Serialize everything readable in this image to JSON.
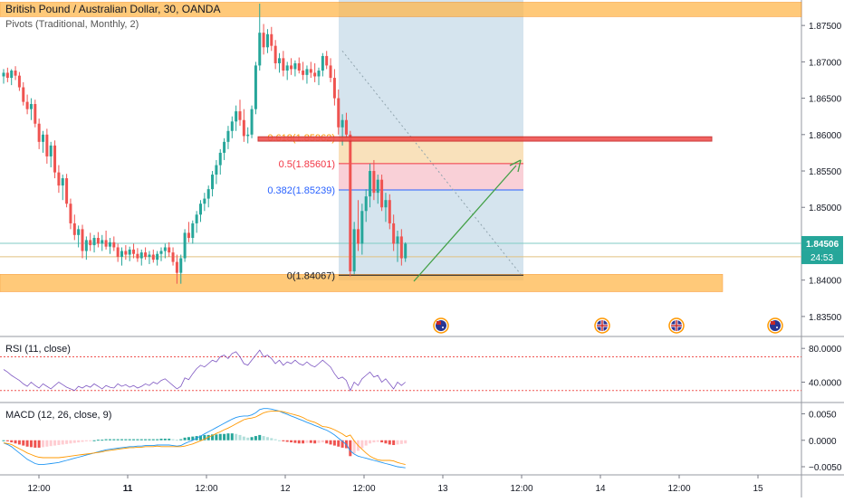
{
  "header": {
    "symbol_title": "British Pound / Australian Dollar, 30, OANDA",
    "pivots_label": "Pivots (Traditional, Monthly, 2)"
  },
  "colors": {
    "bull": "#26a69a",
    "bear": "#ef5350",
    "orange_zone": "#ffb74d",
    "fib_0618": "#ff9800",
    "fib_05": "#f23645",
    "fib_0382": "#2962ff",
    "fib_0": "#131722",
    "price_tag": "#26a69a",
    "rsi_line": "#7e57c2",
    "rsi_bound": "#ef5350",
    "macd_line": "#2196f3",
    "signal_line": "#ff9800",
    "arrow": "#43a047",
    "shade": "#b3cde0"
  },
  "chart_data": [
    {
      "type": "candlestick",
      "title": "British Pound / Australian Dollar, 30, OANDA",
      "y_ticks": [
        1.835,
        1.84,
        1.845,
        1.85,
        1.855,
        1.86,
        1.865,
        1.87,
        1.875
      ],
      "y_tick_labels": [
        "1.83500",
        "1.84000",
        "1.84500",
        "1.85000",
        "1.85500",
        "1.86000",
        "1.86500",
        "1.87000",
        "1.87500"
      ],
      "ylim": [
        1.8325,
        1.8785
      ],
      "x_ticks": [
        "12:00",
        "11",
        "12:00",
        "12",
        "12:00",
        "13",
        "12:00",
        "14",
        "12:00",
        "15"
      ],
      "bold_x_ticks": [
        "11"
      ],
      "current_price": "1.84506",
      "countdown": "24:53",
      "fib_levels": [
        {
          "label": "0.618(1.85962)",
          "value": 1.85962
        },
        {
          "label": "0.5(1.85601)",
          "value": 1.85601
        },
        {
          "label": "0.382(1.85239)",
          "value": 1.85239
        },
        {
          "label": "0(1.84067)",
          "value": 1.84067
        }
      ],
      "zones": [
        {
          "from": 1.8762,
          "to": 1.8782
        },
        {
          "from": 1.8384,
          "to": 1.8408
        },
        {
          "from": 1.8591,
          "to": 1.8597
        }
      ],
      "candles": [
        [
          1.868,
          1.869,
          1.867,
          1.8685
        ],
        [
          1.8685,
          1.8692,
          1.8672,
          1.8678
        ],
        [
          1.8678,
          1.869,
          1.8668,
          1.8688
        ],
        [
          1.8688,
          1.8694,
          1.8675,
          1.8681
        ],
        [
          1.8681,
          1.8686,
          1.866,
          1.8665
        ],
        [
          1.8665,
          1.8672,
          1.864,
          1.8645
        ],
        [
          1.8645,
          1.8655,
          1.8628,
          1.8635
        ],
        [
          1.8635,
          1.865,
          1.862,
          1.8642
        ],
        [
          1.8642,
          1.8648,
          1.861,
          1.8615
        ],
        [
          1.8615,
          1.8622,
          1.858,
          1.859
        ],
        [
          1.859,
          1.8605,
          1.8575,
          1.86
        ],
        [
          1.86,
          1.8608,
          1.856,
          1.857
        ],
        [
          1.857,
          1.859,
          1.8555,
          1.8585
        ],
        [
          1.8585,
          1.8592,
          1.854,
          1.8548
        ],
        [
          1.8548,
          1.8558,
          1.852,
          1.853
        ],
        [
          1.853,
          1.8545,
          1.851,
          1.854
        ],
        [
          1.854,
          1.8546,
          1.85,
          1.8505
        ],
        [
          1.8505,
          1.8512,
          1.847,
          1.8478
        ],
        [
          1.8478,
          1.849,
          1.8455,
          1.8462
        ],
        [
          1.8462,
          1.8475,
          1.8445,
          1.847
        ],
        [
          1.847,
          1.8476,
          1.843,
          1.844
        ],
        [
          1.844,
          1.846,
          1.8428,
          1.8455
        ],
        [
          1.8455,
          1.8465,
          1.844,
          1.8448
        ],
        [
          1.8448,
          1.8462,
          1.8438,
          1.8458
        ],
        [
          1.8458,
          1.8466,
          1.8445,
          1.845
        ],
        [
          1.845,
          1.8462,
          1.844,
          1.8455
        ],
        [
          1.8455,
          1.8468,
          1.8442,
          1.8446
        ],
        [
          1.8446,
          1.8458,
          1.8436,
          1.8452
        ],
        [
          1.8452,
          1.846,
          1.844,
          1.8445
        ],
        [
          1.8445,
          1.845,
          1.8425,
          1.8432
        ],
        [
          1.8432,
          1.8445,
          1.842,
          1.844
        ],
        [
          1.844,
          1.8448,
          1.8428,
          1.8435
        ],
        [
          1.8435,
          1.8446,
          1.8426,
          1.8442
        ],
        [
          1.8442,
          1.845,
          1.843,
          1.8436
        ],
        [
          1.8436,
          1.8444,
          1.8425,
          1.843
        ],
        [
          1.843,
          1.8442,
          1.842,
          1.8438
        ],
        [
          1.8438,
          1.8445,
          1.8428,
          1.8432
        ],
        [
          1.8432,
          1.844,
          1.8422,
          1.8435
        ],
        [
          1.8435,
          1.8442,
          1.8424,
          1.8428
        ],
        [
          1.8428,
          1.844,
          1.842,
          1.8436
        ],
        [
          1.8436,
          1.8445,
          1.8426,
          1.844
        ],
        [
          1.844,
          1.845,
          1.843,
          1.8445
        ],
        [
          1.8445,
          1.8452,
          1.8432,
          1.8438
        ],
        [
          1.8438,
          1.8445,
          1.842,
          1.8425
        ],
        [
          1.8425,
          1.8435,
          1.8395,
          1.841
        ],
        [
          1.841,
          1.8435,
          1.8395,
          1.843
        ],
        [
          1.843,
          1.847,
          1.8425,
          1.8465
        ],
        [
          1.8465,
          1.848,
          1.8452,
          1.8458
        ],
        [
          1.8458,
          1.8482,
          1.845,
          1.8478
        ],
        [
          1.8478,
          1.8495,
          1.8465,
          1.849
        ],
        [
          1.849,
          1.851,
          1.848,
          1.8505
        ],
        [
          1.8505,
          1.852,
          1.8495,
          1.8512
        ],
        [
          1.8512,
          1.853,
          1.85,
          1.8525
        ],
        [
          1.8525,
          1.855,
          1.8515,
          1.8545
        ],
        [
          1.8545,
          1.8565,
          1.8532,
          1.8558
        ],
        [
          1.8558,
          1.858,
          1.8545,
          1.8575
        ],
        [
          1.8575,
          1.8595,
          1.8565,
          1.859
        ],
        [
          1.859,
          1.8612,
          1.858,
          1.8605
        ],
        [
          1.8605,
          1.8625,
          1.8595,
          1.8618
        ],
        [
          1.8618,
          1.864,
          1.8605,
          1.8632
        ],
        [
          1.8632,
          1.8648,
          1.8612,
          1.862
        ],
        [
          1.862,
          1.8635,
          1.859,
          1.8598
        ],
        [
          1.8598,
          1.861,
          1.8588,
          1.86
        ],
        [
          1.86,
          1.864,
          1.8595,
          1.8635
        ],
        [
          1.8635,
          1.87,
          1.8628,
          1.8695
        ],
        [
          1.8695,
          1.878,
          1.8688,
          1.874
        ],
        [
          1.874,
          1.8752,
          1.871,
          1.872
        ],
        [
          1.872,
          1.8745,
          1.8712,
          1.8738
        ],
        [
          1.8738,
          1.8748,
          1.8715,
          1.8722
        ],
        [
          1.8722,
          1.873,
          1.869,
          1.8698
        ],
        [
          1.8698,
          1.8712,
          1.8685,
          1.8705
        ],
        [
          1.8705,
          1.8715,
          1.868,
          1.8688
        ],
        [
          1.8688,
          1.87,
          1.8675,
          1.8695
        ],
        [
          1.8695,
          1.8705,
          1.8682,
          1.869
        ],
        [
          1.869,
          1.8702,
          1.868,
          1.8698
        ],
        [
          1.8698,
          1.8706,
          1.8684,
          1.8688
        ],
        [
          1.8688,
          1.87,
          1.8675,
          1.8682
        ],
        [
          1.8682,
          1.8695,
          1.867,
          1.869
        ],
        [
          1.869,
          1.87,
          1.8678,
          1.8685
        ],
        [
          1.8685,
          1.8698,
          1.8672,
          1.868
        ],
        [
          1.868,
          1.8692,
          1.8668,
          1.8688
        ],
        [
          1.8688,
          1.8712,
          1.868,
          1.8708
        ],
        [
          1.8708,
          1.8715,
          1.869,
          1.8695
        ],
        [
          1.8695,
          1.8705,
          1.8672,
          1.8678
        ],
        [
          1.8678,
          1.869,
          1.864,
          1.865
        ],
        [
          1.865,
          1.8662,
          1.86,
          1.861
        ],
        [
          1.861,
          1.8628,
          1.8585,
          1.862
        ],
        [
          1.862,
          1.863,
          1.8595,
          1.86
        ],
        [
          1.86,
          1.8605,
          1.8405,
          1.8412
        ],
        [
          1.8412,
          1.848,
          1.8408,
          1.847
        ],
        [
          1.847,
          1.851,
          1.844,
          1.845
        ],
        [
          1.845,
          1.8505,
          1.8435,
          1.8495
        ],
        [
          1.8495,
          1.8525,
          1.848,
          1.8515
        ],
        [
          1.8515,
          1.856,
          1.85,
          1.855
        ],
        [
          1.855,
          1.8565,
          1.851,
          1.852
        ],
        [
          1.852,
          1.8545,
          1.8505,
          1.8538
        ],
        [
          1.8538,
          1.8545,
          1.8495,
          1.85
        ],
        [
          1.85,
          1.852,
          1.848,
          1.851
        ],
        [
          1.851,
          1.8518,
          1.847,
          1.8478
        ],
        [
          1.8478,
          1.849,
          1.844,
          1.845
        ],
        [
          1.845,
          1.8468,
          1.8425,
          1.846
        ],
        [
          1.846,
          1.847,
          1.842,
          1.843
        ],
        [
          1.843,
          1.8452,
          1.8425,
          1.845
        ]
      ]
    },
    {
      "type": "line",
      "title": "RSI (11, close)",
      "y_ticks": [
        40,
        80
      ],
      "y_tick_labels": [
        "40.0000",
        "80.0000"
      ],
      "bounds": [
        30,
        70
      ],
      "ylim": [
        18,
        92
      ],
      "values": [
        55,
        52,
        48,
        45,
        42,
        38,
        35,
        40,
        36,
        33,
        38,
        35,
        32,
        36,
        40,
        37,
        34,
        32,
        30,
        35,
        33,
        36,
        34,
        38,
        35,
        32,
        36,
        34,
        33,
        38,
        35,
        37,
        34,
        36,
        33,
        35,
        38,
        36,
        40,
        38,
        42,
        44,
        40,
        36,
        32,
        35,
        45,
        43,
        50,
        56,
        60,
        58,
        62,
        66,
        64,
        70,
        72,
        68,
        74,
        76,
        70,
        62,
        60,
        66,
        72,
        78,
        70,
        72,
        68,
        62,
        66,
        60,
        64,
        62,
        66,
        62,
        60,
        64,
        60,
        58,
        62,
        66,
        62,
        58,
        50,
        44,
        46,
        42,
        30,
        40,
        36,
        44,
        48,
        52,
        46,
        48,
        40,
        44,
        38,
        32,
        40,
        36,
        40
      ]
    },
    {
      "type": "bar+line",
      "title": "MACD (12, 26, close, 9)",
      "y_ticks": [
        0.005,
        0.0,
        -0.005
      ],
      "y_tick_labels": [
        "0.0050",
        "0.0000",
        "−0.0050"
      ],
      "ylim": [
        -0.0062,
        0.0068
      ],
      "histogram": [
        0.0,
        -0.0002,
        -0.0004,
        -0.0006,
        -0.0008,
        -0.001,
        -0.0012,
        -0.0013,
        -0.0014,
        -0.0014,
        -0.0013,
        -0.0012,
        -0.0011,
        -0.001,
        -0.0009,
        -0.0008,
        -0.0007,
        -0.0006,
        -0.0005,
        -0.0004,
        -0.0003,
        -0.0002,
        -0.0001,
        0.0,
        0.0001,
        0.0001,
        0.0002,
        0.0002,
        0.0002,
        0.0002,
        0.0002,
        0.0002,
        0.0002,
        0.0002,
        0.0002,
        0.0002,
        0.0002,
        0.0002,
        0.0002,
        0.0002,
        0.0003,
        0.0003,
        0.0003,
        0.0002,
        0.0001,
        0.0002,
        0.0005,
        0.0006,
        0.0007,
        0.0008,
        0.0009,
        0.001,
        0.001,
        0.0011,
        0.0011,
        0.0012,
        0.0012,
        0.0013,
        0.0013,
        0.0012,
        0.001,
        0.0007,
        0.0005,
        0.0006,
        0.0008,
        0.001,
        0.0008,
        0.0006,
        0.0004,
        0.0002,
        0.0,
        -0.0002,
        -0.0003,
        -0.0004,
        -0.0005,
        -0.0006,
        -0.0006,
        -0.0005,
        -0.0005,
        -0.0006,
        -0.0005,
        -0.0004,
        -0.0006,
        -0.0008,
        -0.001,
        -0.0012,
        -0.0014,
        -0.0015,
        -0.003,
        -0.0025,
        -0.002,
        -0.0015,
        -0.001,
        -0.0006,
        -0.0004,
        -0.0003,
        -0.0004,
        -0.0006,
        -0.0008,
        -0.0009,
        -0.0008,
        -0.0007,
        -0.0006
      ],
      "macd": [
        -0.0005,
        -0.0008,
        -0.0012,
        -0.0018,
        -0.0024,
        -0.003,
        -0.0036,
        -0.004,
        -0.0044,
        -0.0046,
        -0.0046,
        -0.0045,
        -0.0044,
        -0.0043,
        -0.0042,
        -0.004,
        -0.0038,
        -0.0036,
        -0.0034,
        -0.0032,
        -0.003,
        -0.0028,
        -0.0026,
        -0.0024,
        -0.0022,
        -0.002,
        -0.0018,
        -0.0017,
        -0.0016,
        -0.0015,
        -0.0014,
        -0.0013,
        -0.0012,
        -0.0012,
        -0.0011,
        -0.0011,
        -0.001,
        -0.001,
        -0.001,
        -0.0009,
        -0.0009,
        -0.0009,
        -0.0009,
        -0.001,
        -0.0011,
        -0.001,
        -0.0006,
        -0.0003,
        0.0,
        0.0004,
        0.0008,
        0.0012,
        0.0016,
        0.002,
        0.0024,
        0.0028,
        0.0032,
        0.0036,
        0.004,
        0.0043,
        0.0045,
        0.0046,
        0.0046,
        0.0048,
        0.0052,
        0.0058,
        0.006,
        0.006,
        0.0059,
        0.0057,
        0.0055,
        0.0052,
        0.0049,
        0.0046,
        0.0043,
        0.004,
        0.0037,
        0.0034,
        0.0031,
        0.0028,
        0.0025,
        0.0022,
        0.0019,
        0.0015,
        0.001,
        0.0004,
        -0.0002,
        -0.0008,
        -0.002,
        -0.0026,
        -0.003,
        -0.0032,
        -0.0034,
        -0.0036,
        -0.0038,
        -0.004,
        -0.0042,
        -0.0044,
        -0.0046,
        -0.0048,
        -0.005,
        -0.0051,
        -0.0052
      ],
      "signal": [
        -0.0005,
        -0.0006,
        -0.0008,
        -0.0012,
        -0.0016,
        -0.002,
        -0.0024,
        -0.0027,
        -0.003,
        -0.0032,
        -0.0033,
        -0.0033,
        -0.0033,
        -0.0033,
        -0.0033,
        -0.0032,
        -0.0031,
        -0.003,
        -0.0029,
        -0.0028,
        -0.0027,
        -0.0026,
        -0.0025,
        -0.0024,
        -0.0023,
        -0.0022,
        -0.002,
        -0.0019,
        -0.0018,
        -0.0017,
        -0.0016,
        -0.0015,
        -0.0014,
        -0.0014,
        -0.0013,
        -0.0013,
        -0.0012,
        -0.0012,
        -0.0012,
        -0.0011,
        -0.0012,
        -0.0012,
        -0.0012,
        -0.0012,
        -0.0012,
        -0.0012,
        -0.0011,
        -0.0009,
        -0.0007,
        -0.0004,
        -0.0001,
        0.0002,
        0.0006,
        0.0009,
        0.0013,
        0.0016,
        0.002,
        0.0023,
        0.0027,
        0.0031,
        0.0035,
        0.0039,
        0.0041,
        0.0042,
        0.0044,
        0.0048,
        0.0052,
        0.0054,
        0.0055,
        0.0055,
        0.0055,
        0.0054,
        0.0052,
        0.005,
        0.0048,
        0.0046,
        0.0043,
        0.0039,
        0.0036,
        0.0034,
        0.003,
        0.0026,
        0.0025,
        0.0023,
        0.002,
        0.0016,
        0.0012,
        0.0007,
        0.001,
        -0.0001,
        -0.001,
        -0.0017,
        -0.0024,
        -0.003,
        -0.0034,
        -0.0037,
        -0.0038,
        -0.0038,
        -0.0038,
        -0.0039,
        -0.0042,
        -0.0044,
        -0.0046
      ]
    }
  ]
}
